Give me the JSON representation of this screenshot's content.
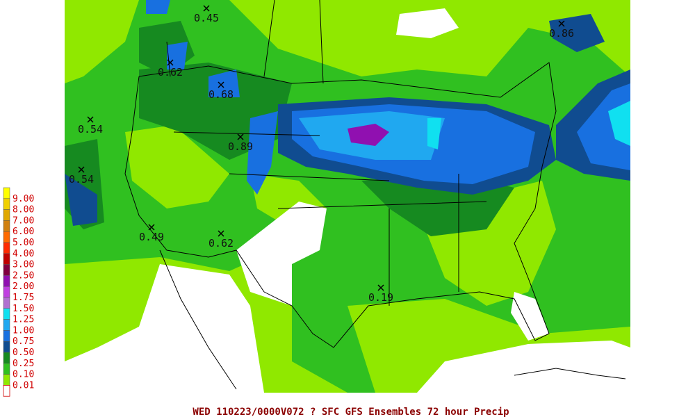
{
  "legend": [
    {
      "label": "9.00",
      "color": "#ffff00"
    },
    {
      "label": "8.00",
      "color": "#f0d000"
    },
    {
      "label": "7.00",
      "color": "#e0a800"
    },
    {
      "label": "6.00",
      "color": "#d08010"
    },
    {
      "label": "5.00",
      "color": "#ff6a00"
    },
    {
      "label": "4.00",
      "color": "#ff2a00"
    },
    {
      "label": "3.00",
      "color": "#c00000"
    },
    {
      "label": "2.50",
      "color": "#800040"
    },
    {
      "label": "2.00",
      "color": "#9010b0"
    },
    {
      "label": "1.75",
      "color": "#c040e0"
    },
    {
      "label": "1.50",
      "color": "#b070d0"
    },
    {
      "label": "1.25",
      "color": "#10e0f0"
    },
    {
      "label": "1.00",
      "color": "#20a8f0"
    },
    {
      "label": "0.75",
      "color": "#1870e0"
    },
    {
      "label": "0.50",
      "color": "#104c90"
    },
    {
      "label": "0.25",
      "color": "#168a20"
    },
    {
      "label": "0.10",
      "color": "#30c020"
    },
    {
      "label": "0.01",
      "color": "#90e800"
    }
  ],
  "map_labels": [
    {
      "text": "0.45"
    },
    {
      "text": "0.86"
    },
    {
      "text": "0.62"
    },
    {
      "text": "0.68"
    },
    {
      "text": "0.54"
    },
    {
      "text": "0.89"
    },
    {
      "text": "0.54"
    },
    {
      "text": "0.49"
    },
    {
      "text": "0.62"
    },
    {
      "text": "0.19"
    }
  ],
  "footer": "WED 110223/0000V072  ? SFC GFS Ensembles 72 hour Precip"
}
